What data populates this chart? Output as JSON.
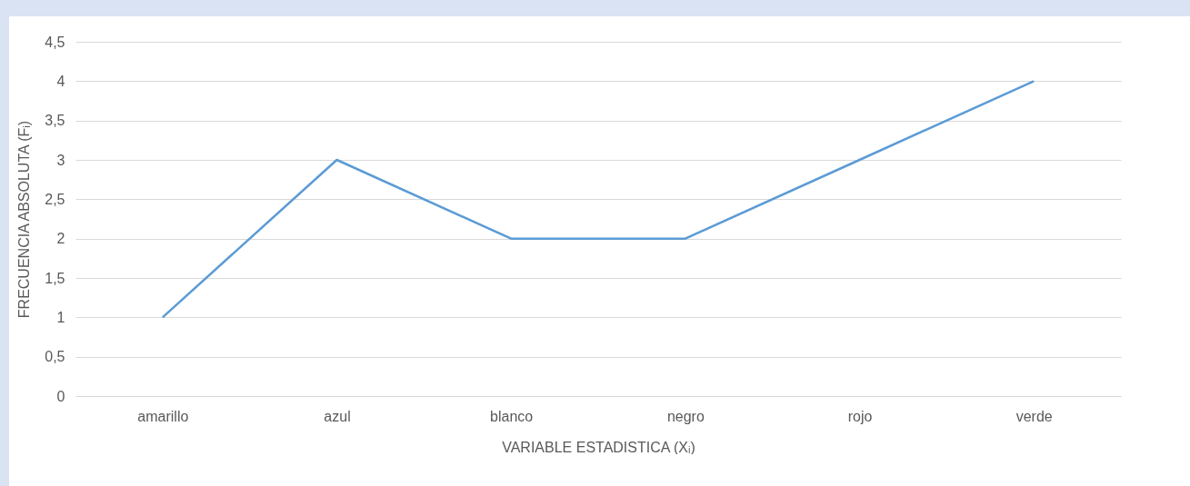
{
  "chart_data": {
    "type": "line",
    "xlabel": "VARIABLE ESTADISTICA (Xᵢ)",
    "ylabel": "FRECUENCIA ABSOLUTA (Fᵢ)",
    "categories": [
      "amarillo",
      "azul",
      "blanco",
      "negro",
      "rojo",
      "verde"
    ],
    "series": [
      {
        "color": "#5b9bd5",
        "values": [
          1,
          3,
          2,
          2,
          3,
          4
        ]
      }
    ],
    "ylim": [
      0,
      4.5
    ],
    "yticks": [
      0,
      {
        "value": 0.5,
        "label": "0,5"
      },
      1,
      {
        "value": 1.5,
        "label": "1,5"
      },
      2,
      {
        "value": 2.5,
        "label": "2,5"
      },
      3,
      {
        "value": 3.5,
        "label": "3,5"
      },
      4,
      {
        "value": 4.5,
        "label": "4,5"
      }
    ],
    "grid": "y",
    "legend": false,
    "marker": "none",
    "line_style": "solid"
  }
}
